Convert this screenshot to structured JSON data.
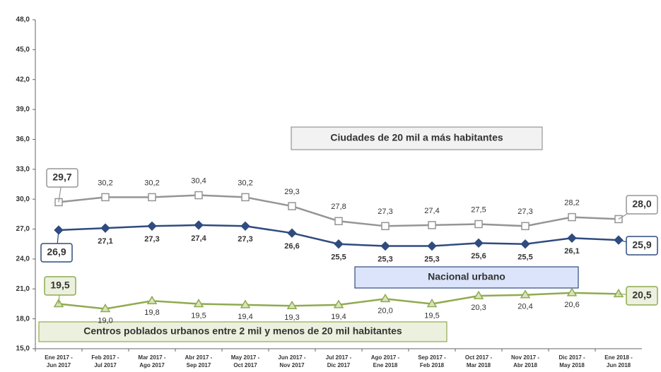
{
  "chart_data": {
    "type": "line",
    "categories": [
      "Ene 2017 - Jun 2017",
      "Feb 2017 - Jul 2017",
      "Mar 2017 - Ago 2017",
      "Abr 2017 - Sep 2017",
      "May 2017 - Oct 2017",
      "Jun 2017 - Nov 2017",
      "Jul 2017 - Dic 2017",
      "Ago 2017 - Ene 2018",
      "Sep 2017 - Feb 2018",
      "Oct 2017 - Mar 2018",
      "Nov 2017 - Abr 2018",
      "Dic 2017 - May 2018",
      "Ene 2018 - Jun 2018"
    ],
    "series": [
      {
        "name": "Ciudades de 20 mil a más habitantes",
        "color": "#959595",
        "values": [
          29.7,
          30.2,
          30.2,
          30.4,
          30.2,
          29.3,
          27.8,
          27.3,
          27.4,
          27.5,
          27.3,
          28.2,
          28.0
        ],
        "value_labels": [
          "29,7",
          "30,2",
          "30,2",
          "30,4",
          "30,2",
          "29,3",
          "27,8",
          "27,3",
          "27,4",
          "27,5",
          "27,3",
          "28,2",
          "28,0"
        ]
      },
      {
        "name": "Nacional urbano",
        "color": "#2f4b7f",
        "values": [
          26.9,
          27.1,
          27.3,
          27.4,
          27.3,
          26.6,
          25.5,
          25.3,
          25.3,
          25.6,
          25.5,
          26.1,
          25.9
        ],
        "value_labels": [
          "26,9",
          "27,1",
          "27,3",
          "27,4",
          "27,3",
          "26,6",
          "25,5",
          "25,3",
          "25,3",
          "25,6",
          "25,5",
          "26,1",
          "25,9"
        ]
      },
      {
        "name": "Centros poblados urbanos entre 2 mil y menos de 20 mil habitantes",
        "color": "#8faa4f",
        "values": [
          19.5,
          19.0,
          19.8,
          19.5,
          19.4,
          19.3,
          19.4,
          20.0,
          19.5,
          20.3,
          20.4,
          20.6,
          20.5
        ],
        "value_labels": [
          "19,5",
          "19,0",
          "19,8",
          "19,5",
          "19,4",
          "19,3",
          "19,4",
          "20,0",
          "19,5",
          "20,3",
          "20,4",
          "20,6",
          "20,5"
        ]
      }
    ],
    "ylim": [
      15,
      48
    ],
    "yticks": [
      {
        "value": 15,
        "label": "15,0"
      },
      {
        "value": 18,
        "label": "18,0"
      },
      {
        "value": 21,
        "label": "21,0"
      },
      {
        "value": 24,
        "label": "24,0"
      },
      {
        "value": 27,
        "label": "27,0"
      },
      {
        "value": 30,
        "label": "30,0"
      },
      {
        "value": 33,
        "label": "33,0"
      },
      {
        "value": 36,
        "label": "36,0"
      },
      {
        "value": 39,
        "label": "39,0"
      },
      {
        "value": 42,
        "label": "42,0"
      },
      {
        "value": 45,
        "label": "45,0"
      },
      {
        "value": 48,
        "label": "48,0"
      }
    ],
    "grid": false
  }
}
